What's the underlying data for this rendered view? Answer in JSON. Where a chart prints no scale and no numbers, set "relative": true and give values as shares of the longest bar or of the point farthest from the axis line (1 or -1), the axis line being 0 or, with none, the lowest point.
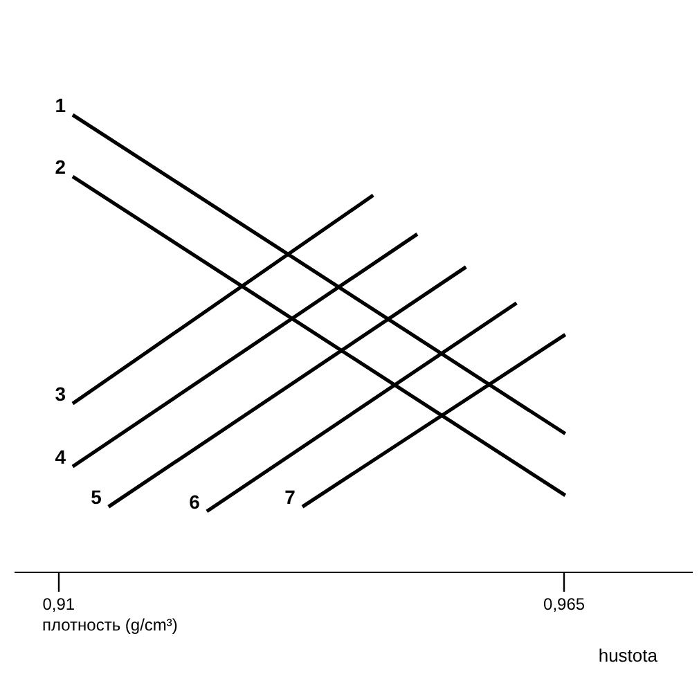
{
  "chart_data": {
    "type": "line",
    "relative": true,
    "xlabel": "плотность (g/cm³)",
    "xlim": [
      0.9052,
      0.979
    ],
    "xticks": [
      {
        "value": 0.91,
        "label": "0,91"
      },
      {
        "value": 0.965,
        "label": "0,965"
      }
    ],
    "tick_labels": "x",
    "grid": false,
    "legend": false,
    "marker": "none",
    "line_style": "solid",
    "series": [
      {
        "name": "1",
        "color": "#000000",
        "x": [
          0.9116,
          0.9652
        ],
        "values": [
          1.0,
          0.302
        ]
      },
      {
        "name": "2",
        "color": "#000000",
        "x": [
          0.9116,
          0.9652
        ],
        "values": [
          0.865,
          0.167
        ]
      },
      {
        "name": "3",
        "color": "#000000",
        "x": [
          0.9116,
          0.9443
        ],
        "values": [
          0.368,
          0.824
        ]
      },
      {
        "name": "4",
        "color": "#000000",
        "x": [
          0.9116,
          0.9491
        ],
        "values": [
          0.23,
          0.739
        ]
      },
      {
        "name": "5",
        "color": "#000000",
        "x": [
          0.9155,
          0.9544
        ],
        "values": [
          0.142,
          0.667
        ]
      },
      {
        "name": "6",
        "color": "#000000",
        "x": [
          0.9262,
          0.9599
        ],
        "values": [
          0.132,
          0.588
        ]
      },
      {
        "name": "7",
        "color": "#000000",
        "x": [
          0.9366,
          0.9652
        ],
        "values": [
          0.142,
          0.519
        ]
      }
    ],
    "annotations": [
      "hustota"
    ]
  }
}
